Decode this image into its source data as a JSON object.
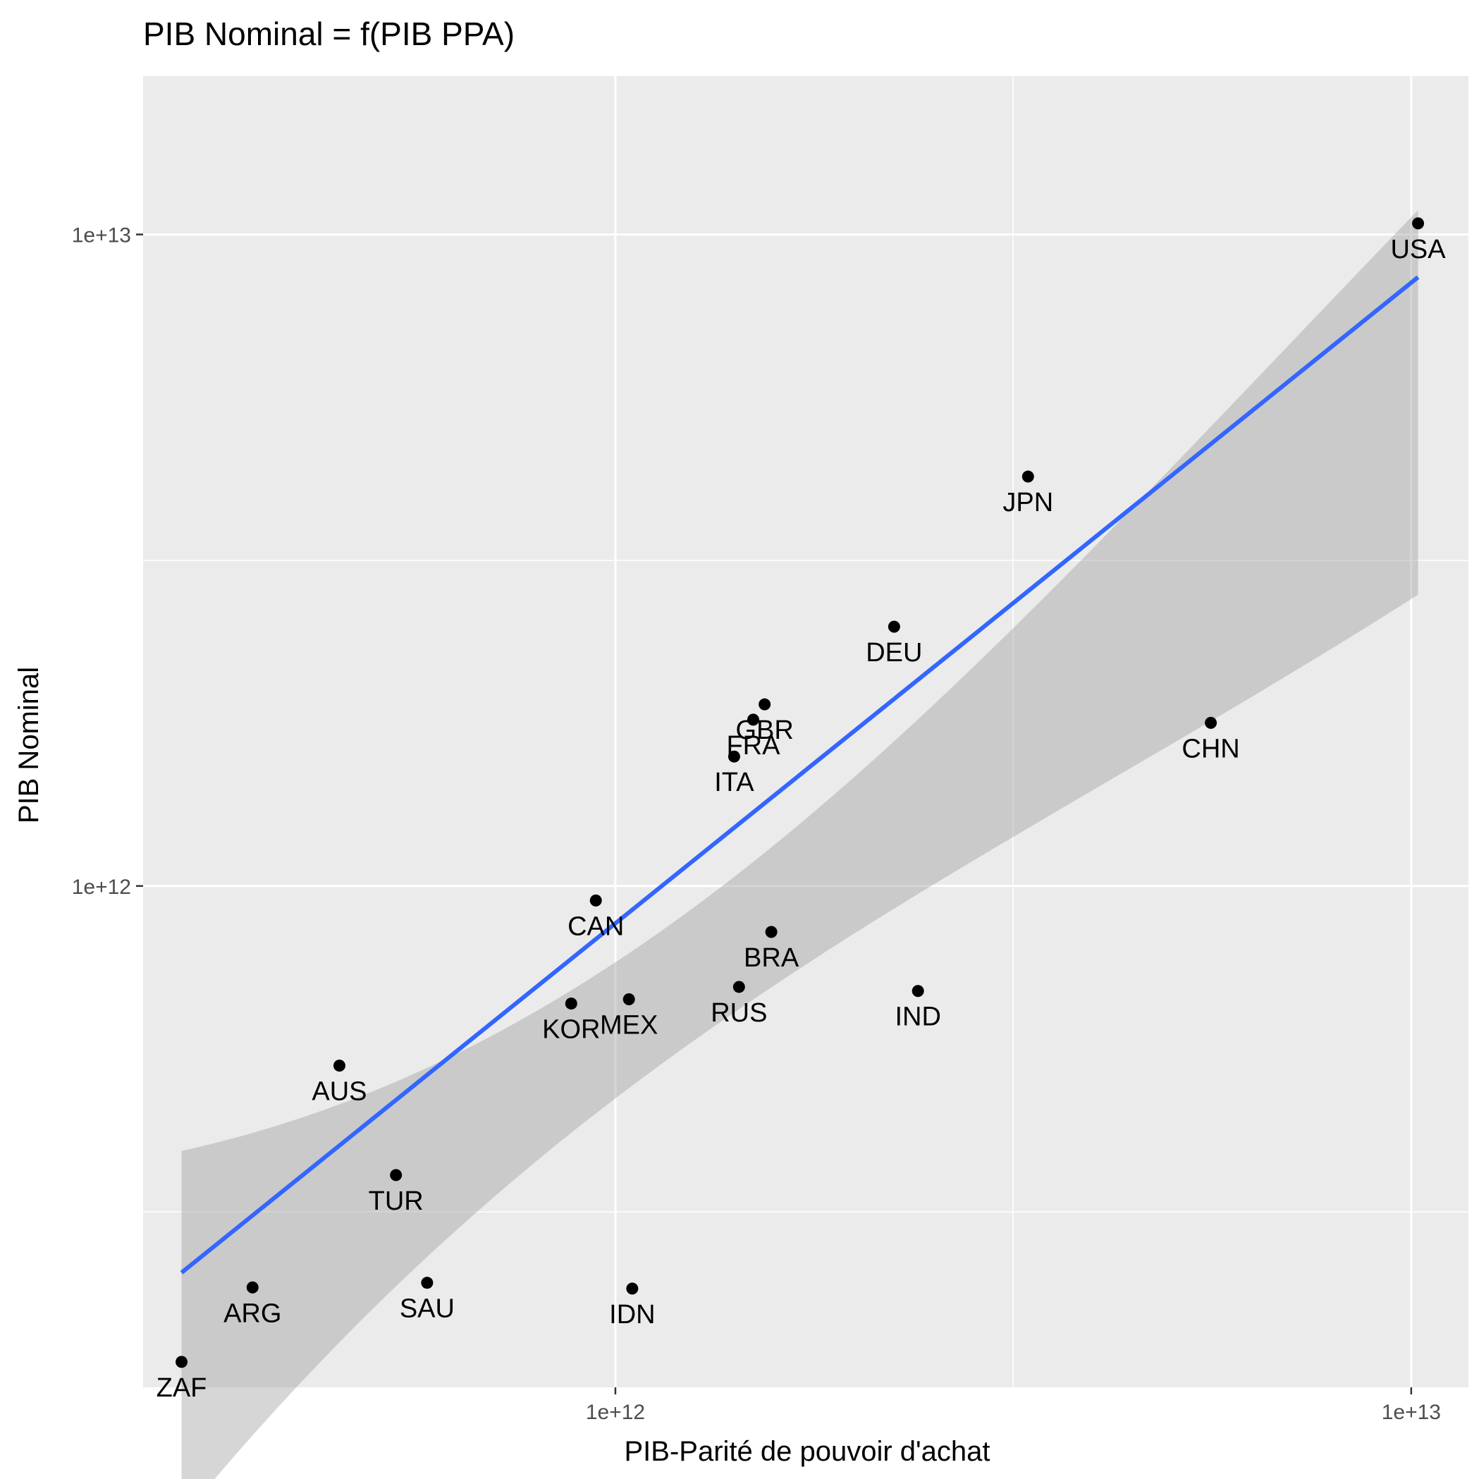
{
  "chart_data": {
    "type": "scatter",
    "title": "PIB Nominal = f(PIB PPA)",
    "xlabel": "PIB-Parité de pouvoir d'achat",
    "ylabel": "PIB Nominal",
    "x_scale": "log10",
    "y_scale": "log10",
    "xlim": [
      255000000000.0,
      11800000000000.0
    ],
    "ylim": [
      170000000000.0,
      17500000000000.0
    ],
    "x_ticks": [
      {
        "value": 1000000000000.0,
        "label": "1e+12"
      },
      {
        "value": 10000000000000.0,
        "label": "1e+13"
      }
    ],
    "x_minor_ticks": [
      3160000000000.0
    ],
    "y_ticks": [
      {
        "value": 1000000000000.0,
        "label": "1e+12"
      },
      {
        "value": 10000000000000.0,
        "label": "1e+13"
      }
    ],
    "y_minor_ticks": [
      316000000000.0,
      3160000000000.0
    ],
    "grid": true,
    "legend": "none",
    "points": [
      {
        "label": "USA",
        "x": 10200000000000.0,
        "y": 10400000000000.0
      },
      {
        "label": "JPN",
        "x": 3300000000000.0,
        "y": 4250000000000.0
      },
      {
        "label": "DEU",
        "x": 2240000000000.0,
        "y": 2500000000000.0
      },
      {
        "label": "GBR",
        "x": 1540000000000.0,
        "y": 1900000000000.0
      },
      {
        "label": "FRA",
        "x": 1490000000000.0,
        "y": 1800000000000.0
      },
      {
        "label": "ITA",
        "x": 1410000000000.0,
        "y": 1580000000000.0
      },
      {
        "label": "CHN",
        "x": 5600000000000.0,
        "y": 1780000000000.0
      },
      {
        "label": "CAN",
        "x": 945000000000.0,
        "y": 950000000000.0
      },
      {
        "label": "BRA",
        "x": 1570000000000.0,
        "y": 850000000000.0
      },
      {
        "label": "RUS",
        "x": 1430000000000.0,
        "y": 700000000000.0
      },
      {
        "label": "IND",
        "x": 2400000000000.0,
        "y": 690000000000.0
      },
      {
        "label": "KOR",
        "x": 880000000000.0,
        "y": 660000000000.0
      },
      {
        "label": "MEX",
        "x": 1040000000000.0,
        "y": 670000000000.0
      },
      {
        "label": "AUS",
        "x": 450000000000.0,
        "y": 530000000000.0
      },
      {
        "label": "TUR",
        "x": 530000000000.0,
        "y": 360000000000.0
      },
      {
        "label": "ARG",
        "x": 350000000000.0,
        "y": 242000000000.0
      },
      {
        "label": "SAU",
        "x": 580000000000.0,
        "y": 246000000000.0
      },
      {
        "label": "IDN",
        "x": 1050000000000.0,
        "y": 241000000000.0
      },
      {
        "label": "ZAF",
        "x": 285000000000.0,
        "y": 186000000000.0
      }
    ],
    "fit": {
      "method": "lm",
      "x": [
        285000000000.0,
        10200000000000.0
      ],
      "y": [
        255000000000.0,
        8600000000000.0
      ],
      "ci_lower": [
        107000000000.0,
        2800000000000.0
      ],
      "ci_upper": [
        392000000000.0,
        10900000000000.0
      ]
    },
    "colors": {
      "panel": "#ebebeb",
      "grid": "#ffffff",
      "point": "#000000",
      "line": "#3366ff",
      "ribbon": "#999999"
    }
  }
}
